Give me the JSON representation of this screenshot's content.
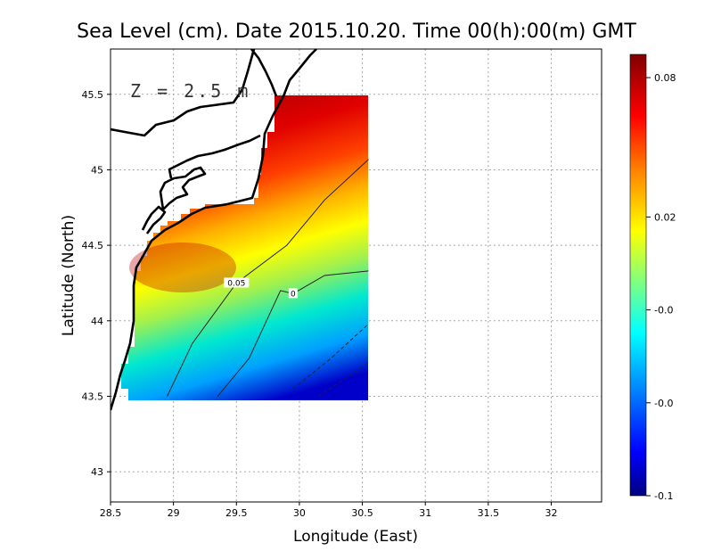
{
  "chart_data": {
    "type": "heatmap",
    "title": "Sea Level (cm). Date 2015.10.20. Time 00(h):00(m) GMT",
    "xlabel": "Longitude (East)",
    "ylabel": "Latitude (North)",
    "annotation": "Z = 2.5 m",
    "xlim": [
      28.5,
      32.4
    ],
    "ylim": [
      42.8,
      45.8
    ],
    "x_ticks": [
      "28.5",
      "29",
      "29.5",
      "30",
      "30.5",
      "31",
      "31.5",
      "32"
    ],
    "y_ticks": [
      "43",
      "43.5",
      "44",
      "44.5",
      "45",
      "45.5"
    ],
    "grid": true,
    "data_extent": {
      "lon": [
        28.6,
        30.55
      ],
      "lat": [
        43.5,
        45.5
      ]
    },
    "colorbar": {
      "range": [
        -0.1,
        0.09
      ],
      "tick_labels": [
        "0.08",
        "0.02",
        "-0.0",
        "-0.0",
        "-0.1"
      ],
      "tick_values": [
        0.08,
        0.02,
        -0.02,
        -0.06,
        -0.1
      ],
      "colors": [
        "#000080",
        "#0000ff",
        "#00ffff",
        "#ffff00",
        "#ff8000",
        "#ff0000",
        "#800000"
      ]
    },
    "contours": [
      {
        "label": "0.05",
        "value": 0.05,
        "style": "solid",
        "points": [
          [
            28.95,
            43.5
          ],
          [
            29.15,
            43.85
          ],
          [
            29.5,
            44.25
          ],
          [
            29.9,
            44.5
          ],
          [
            30.2,
            44.8
          ],
          [
            30.55,
            45.07
          ]
        ]
      },
      {
        "label": "0",
        "value": 0,
        "style": "solid",
        "points": [
          [
            29.35,
            43.5
          ],
          [
            29.6,
            43.75
          ],
          [
            29.85,
            44.2
          ],
          [
            29.95,
            44.18
          ],
          [
            30.2,
            44.3
          ],
          [
            30.55,
            44.33
          ]
        ]
      },
      {
        "label": "",
        "value": -0.05,
        "style": "dashed",
        "points": [
          [
            29.95,
            43.55
          ],
          [
            30.25,
            43.75
          ],
          [
            30.55,
            43.98
          ]
        ]
      },
      {
        "label": "",
        "value": -0.08,
        "style": "dashed",
        "points": [
          [
            30.15,
            43.5
          ],
          [
            30.55,
            43.72
          ]
        ]
      }
    ]
  }
}
